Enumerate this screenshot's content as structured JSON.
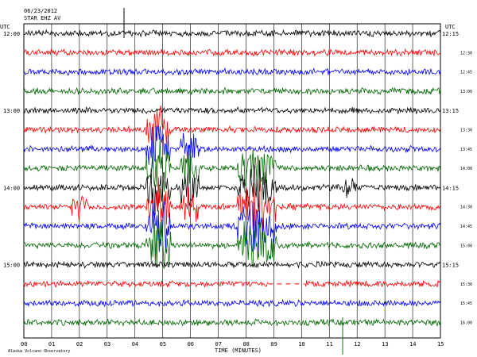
{
  "header": {
    "line1": "06/23/2012",
    "line2": "STAR EHZ AV"
  },
  "labels": {
    "utc_left": "UTC",
    "utc_right": "UTC",
    "xlabel": "TIME (MINUTES)",
    "footer": "Alaska Volcano Observatory"
  },
  "colors": {
    "trace_cycle": [
      "#000000",
      "#ff0000",
      "#0000ff",
      "#006600"
    ],
    "grid": "#000000",
    "event_marker": "#000000",
    "bottom_marker": "#008000"
  },
  "chart_data": {
    "type": "line",
    "title": "",
    "xlabel": "TIME (MINUTES)",
    "x_ticks": [
      "00",
      "01",
      "02",
      "03",
      "04",
      "05",
      "06",
      "07",
      "08",
      "09",
      "10",
      "11",
      "12",
      "13",
      "14",
      "15"
    ],
    "xlim": [
      0,
      15
    ],
    "num_traces": 16,
    "row_minutes": 15,
    "left_hour_labels": [
      {
        "row": 0,
        "text": "12:00"
      },
      {
        "row": 4,
        "text": "13:00"
      },
      {
        "row": 8,
        "text": "14:00"
      },
      {
        "row": 12,
        "text": "15:00"
      }
    ],
    "right_hour_labels": [
      {
        "row": 0,
        "text": "12:15"
      },
      {
        "row": 4,
        "text": "13:15"
      },
      {
        "row": 8,
        "text": "14:15"
      },
      {
        "row": 12,
        "text": "15:15"
      }
    ],
    "right_minute_labels": [
      "",
      "12:30",
      "12:45",
      "13:00",
      "",
      "13:30",
      "13:45",
      "14:00",
      "",
      "14:30",
      "14:45",
      "15:00",
      "",
      "15:30",
      "15:45",
      "16:00"
    ],
    "events": [
      {
        "rows": [
          5,
          6,
          7,
          8,
          9,
          10,
          11
        ],
        "start": 4.4,
        "end": 5.3,
        "amplitude": 1.0
      },
      {
        "rows": [
          6,
          7,
          8,
          9
        ],
        "start": 5.6,
        "end": 6.3,
        "amplitude": 0.7
      },
      {
        "rows": [
          7,
          8,
          9,
          10,
          11
        ],
        "start": 7.7,
        "end": 9.1,
        "amplitude": 0.95
      },
      {
        "rows": [
          8
        ],
        "start": 11.5,
        "end": 12.0,
        "amplitude": 0.35
      },
      {
        "rows": [
          9
        ],
        "start": 1.7,
        "end": 2.3,
        "amplitude": 0.4
      }
    ],
    "gap": {
      "row": 13,
      "start": 8.8,
      "end": 10.1
    }
  }
}
